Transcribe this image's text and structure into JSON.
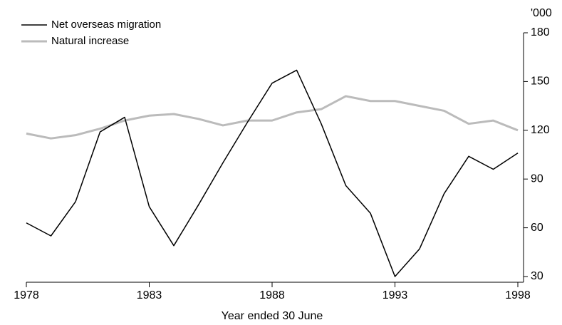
{
  "chart_data": {
    "type": "line",
    "x": [
      1978,
      1979,
      1980,
      1981,
      1982,
      1983,
      1984,
      1985,
      1986,
      1987,
      1988,
      1989,
      1990,
      1991,
      1992,
      1993,
      1994,
      1995,
      1996,
      1997,
      1998
    ],
    "series": [
      {
        "name": "Net overseas migration",
        "color": "#000000",
        "values": [
          63,
          55,
          76,
          119,
          128,
          73,
          49,
          74,
          100,
          125,
          149,
          157,
          124,
          86,
          69,
          30,
          47,
          81,
          104,
          96,
          106
        ]
      },
      {
        "name": "Natural increase",
        "color": "#bbbbbb",
        "values": [
          118,
          115,
          117,
          121,
          126,
          129,
          130,
          127,
          123,
          126,
          126,
          131,
          133,
          141,
          138,
          138,
          135,
          132,
          124,
          126,
          120
        ]
      }
    ],
    "xlabel": "Year ended 30 June",
    "y_unit": "'000",
    "xlim": [
      1978,
      1998
    ],
    "xticks": [
      1978,
      1983,
      1988,
      1993,
      1998
    ],
    "ylim": [
      30,
      180
    ],
    "yticks": [
      30,
      60,
      90,
      120,
      150,
      180
    ],
    "y_axis_side": "right",
    "grid": false,
    "legend": "top-left"
  }
}
